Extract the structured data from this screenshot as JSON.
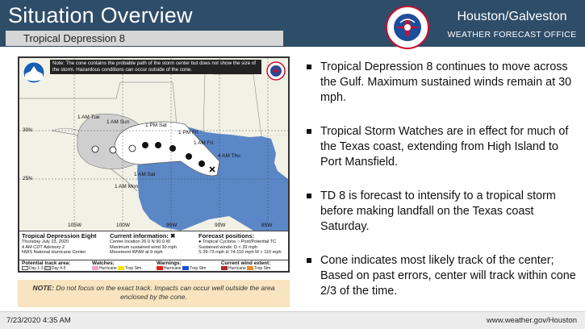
{
  "header": {
    "title": "Situation Overview",
    "subtitle": "Tropical Depression 8",
    "office_name": "Houston/Galveston",
    "office_sub": "WEATHER FORECAST OFFICE",
    "logo_text": "NATIONAL WEATHER SERVICE",
    "bg_color": "#2e4d69"
  },
  "graphic": {
    "note": "Note: The cone contains the probable path of the storm center but does not show the size of the storm. Hazardous conditions can occur outside of the cone.",
    "lat_labels": [
      "30N",
      "25N"
    ],
    "lon_labels": [
      "105W",
      "100W",
      "95W",
      "90W",
      "85W"
    ],
    "track_labels": [
      "1 AM Tue",
      "1 AM Sun",
      "1 PM Sat",
      "1 PM Fri",
      "1 AM Fri",
      "4 AM Thu",
      "1 AM Sat",
      "1 AM Mon"
    ],
    "info": {
      "title": "Tropical Depression Eight",
      "date": "Thursday July 23, 2020",
      "advisory": "4 AM CDT Advisory 2",
      "center": "NWS National Hurricane Center",
      "current_title": "Current information: ✖",
      "current_1": "Center location 26.0 N 90.0 W",
      "current_2": "Maximum sustained wind 30 mph",
      "current_3": "Movement WNW at 9 mph",
      "forecast_title": "Forecast positions:",
      "forecast_1": "● Tropical Cyclone   ○ Post/Potential TC",
      "forecast_2": "Sustained winds:        D < 39 mph",
      "forecast_3": "S 39-73 mph   H 74-110 mph   M > 110 mph"
    },
    "legend": {
      "track_title": "Potential track area:",
      "track_1": "Day 1-3",
      "track_2": "Day 4-5",
      "watches_title": "Watches:",
      "watch_1": "Hurricane",
      "watch_2": "Trop Stm",
      "warnings_title": "Warnings:",
      "warn_1": "Hurricane",
      "warn_2": "Trop Stm",
      "wind_title": "Current wind extent:",
      "wind_1": "Hurricane",
      "wind_2": "Trop Stm"
    }
  },
  "note": {
    "label": "NOTE:",
    "text": "Do not focus on the exact track.  Impacts can occur well outside the area enclosed by the cone."
  },
  "bullets": [
    "Tropical Depression 8 continues to move across the Gulf. Maximum sustained winds remain at 30 mph.",
    "Tropical Storm Watches are in effect for much of the Texas coast, extending from High Island to Port Mansfield.",
    "TD 8 is forecast to intensify to a tropical storm before making landfall on the Texas coast Saturday.",
    "Cone indicates most likely track of the center; Based on past errors, center will track within cone 2/3 of the time."
  ],
  "footer": {
    "timestamp": "7/23/2020 4:35 AM",
    "url": "www.weather.gov/Houston"
  }
}
